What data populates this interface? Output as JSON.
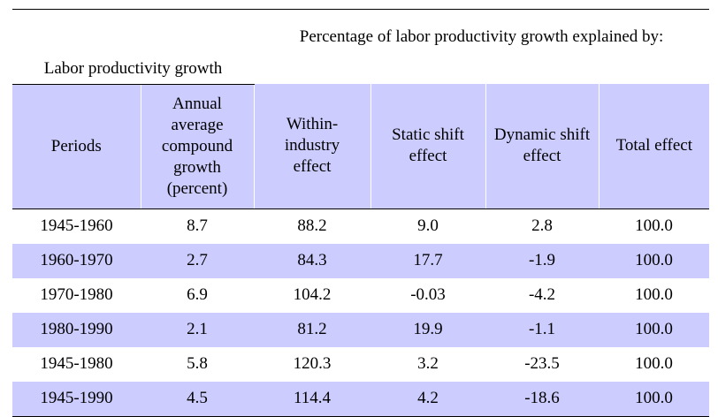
{
  "table": {
    "group_left": "Labor productivity growth",
    "group_right": "Percentage of labor productivity growth explained by:",
    "columns": [
      "Periods",
      "Annual average compound growth (percent)",
      "Within-industry effect",
      "Static shift effect",
      "Dynamic shift effect",
      "Total effect"
    ],
    "rows": [
      [
        "1945-1960",
        "8.7",
        "88.2",
        "9.0",
        "2.8",
        "100.0"
      ],
      [
        "1960-1970",
        "2.7",
        "84.3",
        "17.7",
        "-1.9",
        "100.0"
      ],
      [
        "1970-1980",
        "6.9",
        "104.2",
        "-0.03",
        "-4.2",
        "100.0"
      ],
      [
        "1980-1990",
        "2.1",
        "81.2",
        "19.9",
        "-1.1",
        "100.0"
      ],
      [
        "1945-1980",
        "5.8",
        "120.3",
        "3.2",
        "-23.5",
        "100.0"
      ],
      [
        "1945-1990",
        "4.5",
        "114.4",
        "4.2",
        "-18.6",
        "100.0"
      ]
    ]
  },
  "colors": {
    "header_bg": "#ccccff",
    "shaded_row_bg": "#ccccff"
  }
}
